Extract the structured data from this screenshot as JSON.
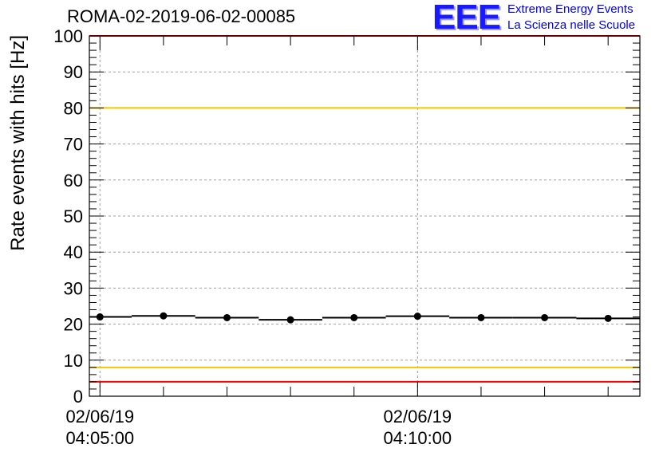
{
  "header": {
    "run_title": "ROMA-02-2019-06-02-00085",
    "logo_letters": "EEE",
    "logo_line1": "Extreme Energy Events",
    "logo_line2": "La Scienza nelle Scuole"
  },
  "chart_data": {
    "type": "scatter",
    "title": "ROMA-02-2019-06-02-00085",
    "ylabel": "Rate events with hits [Hz]",
    "xlabel": "",
    "ylim": [
      0,
      100
    ],
    "yticks": [
      0,
      10,
      20,
      30,
      40,
      50,
      60,
      70,
      80,
      90,
      100
    ],
    "xrange": [
      "04:04:50",
      "04:13:30"
    ],
    "xticks": [
      {
        "date": "02/06/19",
        "time": "04:05:00"
      },
      {
        "date": "02/06/19",
        "time": "04:10:00"
      }
    ],
    "grid": true,
    "series": [
      {
        "x": [
          "04:05:00",
          "04:06:00",
          "04:07:00",
          "04:08:00",
          "04:09:00",
          "04:10:00",
          "04:11:00",
          "04:12:00",
          "04:13:00"
        ],
        "values": [
          22.0,
          22.3,
          21.8,
          21.2,
          21.8,
          22.2,
          21.8,
          21.8,
          21.6
        ]
      }
    ],
    "reference_lines": [
      {
        "value": 100,
        "color": "#ff0000"
      },
      {
        "value": 80,
        "color": "#f0c800"
      },
      {
        "value": 8,
        "color": "#f0c800"
      },
      {
        "value": 4,
        "color": "#ff0000"
      }
    ]
  }
}
